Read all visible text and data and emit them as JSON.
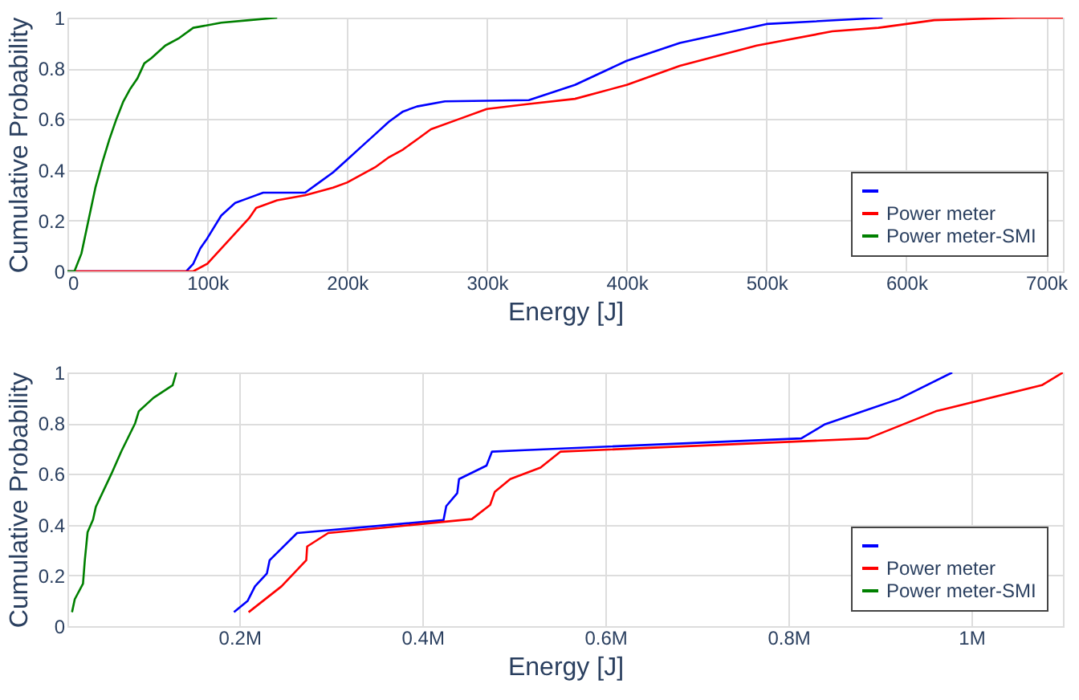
{
  "chart_data": [
    {
      "type": "line",
      "xlabel": "Energy [J]",
      "ylabel": "Cumulative Probability",
      "xlim": [
        0,
        712000
      ],
      "ylim": [
        0,
        1
      ],
      "xticks": [
        0,
        {
          "value": 100000,
          "label": "100k"
        },
        {
          "value": 200000,
          "label": "200k"
        },
        {
          "value": 300000,
          "label": "300k"
        },
        {
          "value": 400000,
          "label": "400k"
        },
        {
          "value": 500000,
          "label": "500k"
        },
        {
          "value": 600000,
          "label": "600k"
        },
        {
          "value": 700000,
          "label": "700k"
        }
      ],
      "yticks": [
        0,
        0.2,
        0.4,
        0.6,
        0.8,
        1
      ],
      "grid": true,
      "legend": "bottom right",
      "marker": "none",
      "line_style": "solid",
      "series": [
        {
          "color": "#0000ff",
          "x": [
            0,
            85000,
            90000,
            95000,
            100000,
            110000,
            120000,
            130000,
            140000,
            170000,
            180000,
            190000,
            200000,
            210000,
            220000,
            230000,
            240000,
            250000,
            270000,
            330000,
            363000,
            400000,
            438000,
            500000,
            583000
          ],
          "values": [
            0,
            0,
            0.03,
            0.09,
            0.13,
            0.22,
            0.27,
            0.29,
            0.31,
            0.31,
            0.35,
            0.39,
            0.44,
            0.49,
            0.54,
            0.59,
            0.63,
            0.65,
            0.67,
            0.675,
            0.735,
            0.83,
            0.9,
            0.975,
            1
          ]
        },
        {
          "name": "Power meter",
          "color": "#ff0000",
          "x": [
            0,
            90000,
            100000,
            110000,
            120000,
            130000,
            135000,
            150000,
            170000,
            190000,
            200000,
            210000,
            220000,
            230000,
            240000,
            250000,
            260000,
            280000,
            300000,
            330000,
            363000,
            400000,
            438000,
            493000,
            547000,
            580000,
            620000,
            680000,
            712000
          ],
          "values": [
            0,
            0,
            0.03,
            0.09,
            0.15,
            0.21,
            0.25,
            0.28,
            0.3,
            0.33,
            0.35,
            0.38,
            0.41,
            0.45,
            0.48,
            0.52,
            0.56,
            0.6,
            0.64,
            0.66,
            0.68,
            0.735,
            0.81,
            0.89,
            0.946,
            0.96,
            0.99,
            1,
            1
          ]
        },
        {
          "name": "Power meter-SMI",
          "color": "#008000",
          "x": [
            0,
            5000,
            10000,
            15000,
            20000,
            25000,
            30000,
            35000,
            40000,
            45000,
            50000,
            55000,
            60000,
            70000,
            80000,
            90000,
            100000,
            110000,
            130000,
            150000
          ],
          "values": [
            0,
            0,
            0.07,
            0.2,
            0.33,
            0.43,
            0.52,
            0.6,
            0.67,
            0.72,
            0.76,
            0.82,
            0.84,
            0.89,
            0.92,
            0.96,
            0.97,
            0.98,
            0.99,
            1
          ]
        }
      ]
    },
    {
      "type": "line",
      "xlabel": "Energy [J]",
      "ylabel": "Cumulative Probability",
      "xlim": [
        12000,
        1100000
      ],
      "ylim": [
        0,
        1
      ],
      "xticks": [
        {
          "value": 200000,
          "label": "0.2M"
        },
        {
          "value": 400000,
          "label": "0.4M"
        },
        {
          "value": 600000,
          "label": "0.6M"
        },
        {
          "value": 800000,
          "label": "0.8M"
        },
        {
          "value": 1000000,
          "label": "1M"
        }
      ],
      "yticks": [
        0,
        0.2,
        0.4,
        0.6,
        0.8,
        1
      ],
      "grid": true,
      "legend": "bottom right",
      "marker": "none",
      "line_style": "solid",
      "series": [
        {
          "color": "#0000ff",
          "x": [
            194000,
            209000,
            217000,
            230000,
            233000,
            263000,
            423000,
            426000,
            438000,
            440000,
            470000,
            476000,
            512000,
            814000,
            840000,
            921000,
            979000
          ],
          "values": [
            0.055,
            0.1,
            0.157,
            0.208,
            0.26,
            0.367,
            0.418,
            0.473,
            0.524,
            0.58,
            0.633,
            0.688,
            0.694,
            0.74,
            0.796,
            0.896,
            1
          ]
        },
        {
          "name": "Power meter",
          "color": "#ff0000",
          "x": [
            210000,
            246000,
            273000,
            274000,
            297000,
            454000,
            474000,
            479000,
            496000,
            529000,
            551000,
            887000,
            961000,
            1077000,
            1100000
          ],
          "values": [
            0.055,
            0.157,
            0.26,
            0.314,
            0.367,
            0.422,
            0.478,
            0.529,
            0.58,
            0.625,
            0.688,
            0.74,
            0.847,
            0.95,
            1
          ]
        },
        {
          "name": "Power meter-SMI",
          "color": "#008000",
          "x": [
            17000,
            20000,
            29000,
            31000,
            34000,
            40000,
            43000,
            60000,
            71000,
            86000,
            90000,
            106000,
            127000,
            131000
          ],
          "values": [
            0.055,
            0.106,
            0.167,
            0.26,
            0.37,
            0.42,
            0.47,
            0.6,
            0.69,
            0.8,
            0.847,
            0.9,
            0.95,
            1
          ]
        }
      ]
    }
  ]
}
